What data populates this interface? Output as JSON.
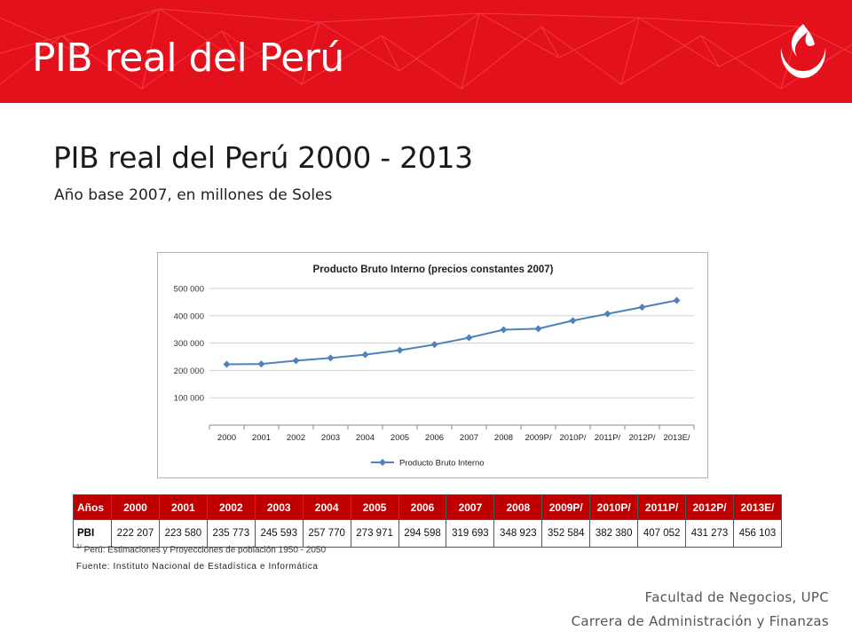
{
  "slide": {
    "title": "PIB real del Perú",
    "heading": "PIB real del Perú 2000 - 2013",
    "subheading": "Año base 2007, en millones de Soles"
  },
  "theme": {
    "brand_red": "#e3111b",
    "table_header_red": "#c00000",
    "series_color": "#4f81bd"
  },
  "logo": {
    "icon": "upc-flame-logo"
  },
  "chart_data": {
    "type": "line",
    "title": "Producto Bruto Interno (precios constantes 2007)",
    "categories": [
      "2000",
      "2001",
      "2002",
      "2003",
      "2004",
      "2005",
      "2006",
      "2007",
      "2008",
      "2009P/",
      "2010P/",
      "2011P/",
      "2012P/",
      "2013E/"
    ],
    "series": [
      {
        "name": "Producto Bruto Interno",
        "values": [
          222207,
          223580,
          235773,
          245593,
          257770,
          273971,
          294598,
          319693,
          348923,
          352584,
          382380,
          407052,
          431273,
          456103
        ]
      }
    ],
    "y_ticks": [
      "100 000",
      "200 000",
      "300 000",
      "400 000",
      "500 000"
    ],
    "ylim": [
      0,
      500000
    ],
    "grid": true,
    "legend": "bottom",
    "marker": "diamond"
  },
  "table": {
    "header_label": "Años",
    "row_label": "PBI",
    "years": [
      "2000",
      "2001",
      "2002",
      "2003",
      "2004",
      "2005",
      "2006",
      "2007",
      "2008",
      "2009P/",
      "2010P/",
      "2011P/",
      "2012P/",
      "2013E/"
    ],
    "values": [
      "222 207",
      "223 580",
      "235 773",
      "245 593",
      "257 770",
      "273 971",
      "294 598",
      "319 693",
      "348 923",
      "352 584",
      "382 380",
      "407 052",
      "431 273",
      "456 103"
    ]
  },
  "notes": {
    "footnote_marker": "1/",
    "footnote": "Perú: Estimaciones y Proyecciones de población 1950 - 2050",
    "source": "Fuente: Instituto Nacional de Estadística e Informática"
  },
  "footer": {
    "line1": "Facultad de Negocios, UPC",
    "line2": "Carrera de Administración y Finanzas"
  }
}
